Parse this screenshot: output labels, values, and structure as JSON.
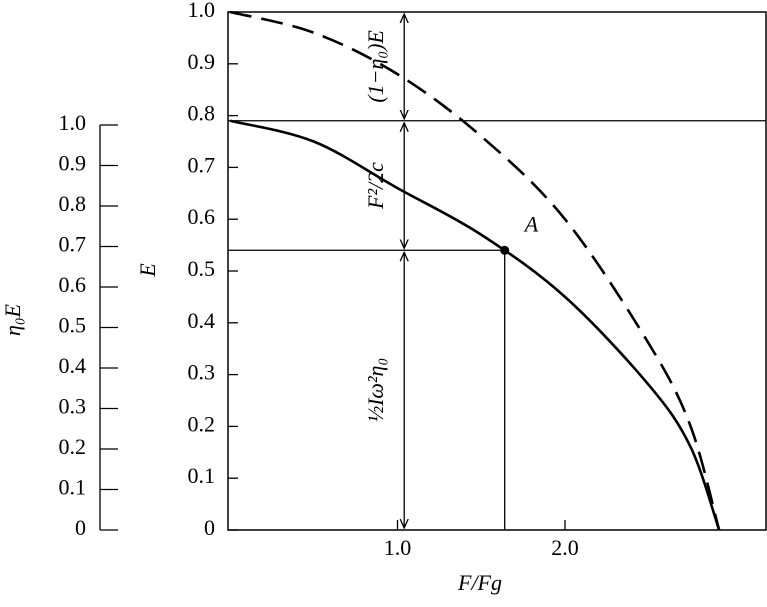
{
  "chart_data": {
    "type": "line",
    "x_label": "F/Fg",
    "y_label": "E",
    "y2_label": "η₀E",
    "x": [
      0,
      0.5,
      1.0,
      1.5,
      2.0,
      2.5,
      2.75,
      2.92
    ],
    "series": [
      {
        "color": "#000000",
        "style": "solid",
        "values": [
          0.79,
          0.75,
          0.66,
          0.57,
          0.45,
          0.28,
          0.16,
          0
        ]
      },
      {
        "color": "#000000",
        "style": "dashed",
        "values": [
          1.0,
          0.96,
          0.88,
          0.76,
          0.6,
          0.36,
          0.2,
          0
        ]
      }
    ],
    "xlim": [
      0,
      3.2
    ],
    "xticks": [
      {
        "value": 1,
        "label": "1.0"
      },
      {
        "value": 2,
        "label": "2.0"
      }
    ],
    "ylim": [
      0,
      1
    ],
    "yticks": [
      0,
      0.1,
      0.2,
      0.3,
      0.4,
      0.5,
      0.6,
      0.7,
      0.8,
      0.9,
      {
        "value": 1,
        "label": "1.0"
      }
    ],
    "y2lim": [
      0,
      1
    ],
    "y2ticks": [
      0,
      0.1,
      0.2,
      0.3,
      0.4,
      0.5,
      0.6,
      0.7,
      0.8,
      0.9,
      {
        "value": 1,
        "label": "1.0"
      }
    ],
    "point": {
      "label": "A",
      "x": 1.64,
      "y": 0.54
    },
    "arrow_x": 1.04,
    "segments": [
      {
        "label": "½Iω²η₀",
        "from": 0,
        "to": 0.54
      },
      {
        "label": "F²/2c",
        "from": 0.54,
        "to": 0.79
      },
      {
        "label": "(1−η₀)E",
        "from": 0.79,
        "to": 1
      }
    ]
  }
}
